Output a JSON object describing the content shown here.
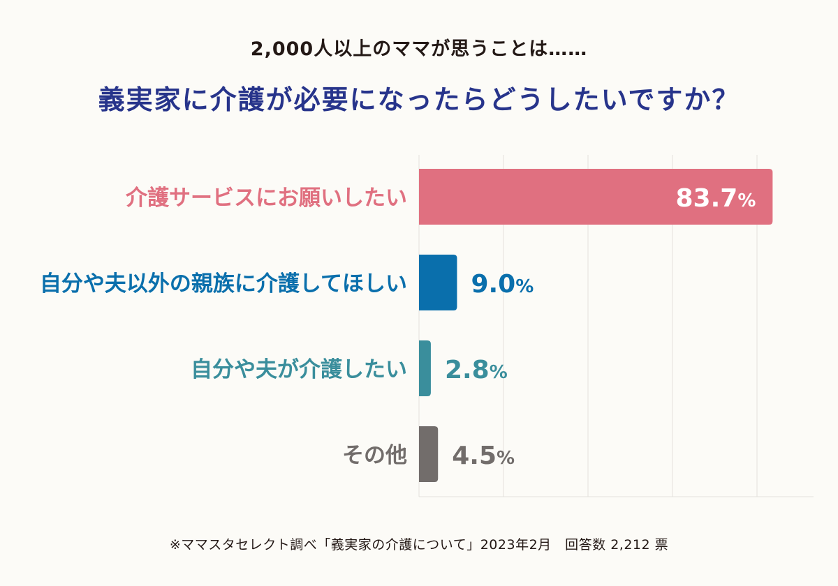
{
  "header": {
    "subtitle": "2,000人以上のママが思うことは……",
    "title": "義実家に介護が必要になったらどうしたいですか？"
  },
  "chart_data": {
    "type": "bar",
    "orientation": "horizontal",
    "categories": [
      "介護サービスにお願いしたい",
      "自分や夫以外の親族に介護してほしい",
      "自分や夫が介護したい",
      "その他"
    ],
    "values": [
      83.7,
      9.0,
      2.8,
      4.5
    ],
    "value_labels": [
      "83.7",
      "9.0",
      "2.8",
      "4.5"
    ],
    "unit": "%",
    "colors": [
      "#e07080",
      "#0a6fac",
      "#3a8e9c",
      "#726d6b"
    ],
    "xlim": [
      0,
      100
    ],
    "grid": true
  },
  "footer": {
    "source": "※ママスタセレクト調べ「義実家の介護について」2023年2月　回答数 2,212 票"
  }
}
